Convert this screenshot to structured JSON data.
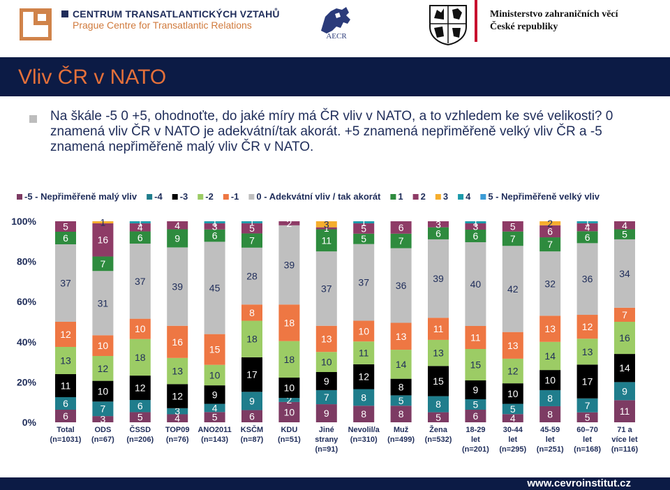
{
  "header": {
    "org_name": "CENTRUM TRANSATLANTICKÝCH VZTAHŮ",
    "org_name_en": "Prague Centre for Transatlantic Relations",
    "aecr_label": "AECR",
    "ministry_line1": "Ministerstvo zahraničních věcí",
    "ministry_line2": "České republiky"
  },
  "title": "Vliv ČR v NATO",
  "question": "Na škále -5 0 +5, ohodnoťte, do jaké míry má ČR vliv v NATO, a to vzhledem ke své velikosti? 0 znamená vliv ČR v NATO je adekvátní/tak akorát. +5 znamená nepřiměřeně velký vliv ČR a -5 znamená nepřiměřeně malý vliv ČR v NATO.",
  "footer_url": "www.cevroinstitut.cz",
  "chart_data": {
    "type": "bar",
    "stacked": true,
    "percent_stacked": true,
    "yticks": [
      "0%",
      "20%",
      "40%",
      "60%",
      "80%",
      "100%"
    ],
    "ylim": [
      0,
      100
    ],
    "legend_position": "top",
    "categories": [
      {
        "name": "Total",
        "n": "(n=1031)"
      },
      {
        "name": "ODS",
        "n": "(n=67)"
      },
      {
        "name": "ČSSD",
        "n": "(n=206)"
      },
      {
        "name": "TOP09",
        "n": "(n=76)"
      },
      {
        "name": "ANO2011",
        "n": "(n=143)"
      },
      {
        "name": "KSČM",
        "n": "(n=87)"
      },
      {
        "name": "KDU",
        "n": "(n=51)"
      },
      {
        "name": "Jiné strany",
        "n": "(n=91)"
      },
      {
        "name": "Nevolil/a",
        "n": "(n=310)"
      },
      {
        "name": "Muž",
        "n": "(n=499)"
      },
      {
        "name": "Žena",
        "n": "(n=532)"
      },
      {
        "name": "18-29 let",
        "n": "(n=201)"
      },
      {
        "name": "30-44 let",
        "n": "(n=295)"
      },
      {
        "name": "45-59 let",
        "n": "(n=251)"
      },
      {
        "name": "60–70 let",
        "n": "(n=168)"
      },
      {
        "name": "71 a více let",
        "n": "(n=116)"
      }
    ],
    "series": [
      {
        "name": "-5 - Nepřiměřeně malý vliv",
        "color": "#7d3b63",
        "values": [
          6,
          3,
          5,
          4,
          5,
          6,
          10,
          9,
          8,
          8,
          5,
          6,
          4,
          8,
          5,
          11
        ]
      },
      {
        "name": "-4",
        "color": "#1f7d8c",
        "values": [
          6,
          7,
          6,
          3,
          4,
          9,
          2,
          7,
          8,
          5,
          8,
          5,
          5,
          8,
          7,
          9
        ]
      },
      {
        "name": "-3",
        "color": "#000000",
        "values": [
          11,
          10,
          12,
          12,
          9,
          17,
          10,
          9,
          12,
          8,
          15,
          9,
          10,
          10,
          17,
          14
        ]
      },
      {
        "name": "-2",
        "color": "#9ccc65",
        "values": [
          13,
          12,
          18,
          13,
          10,
          18,
          18,
          10,
          11,
          14,
          13,
          15,
          12,
          14,
          13,
          16
        ]
      },
      {
        "name": "-1",
        "color": "#ee7743",
        "values": [
          12,
          10,
          10,
          16,
          15,
          8,
          18,
          13,
          10,
          13,
          11,
          11,
          13,
          13,
          12,
          7
        ]
      },
      {
        "name": "0 - Adekvátní vliv / tak akorát",
        "color": "#bfbfbf",
        "values": [
          37,
          31,
          37,
          39,
          45,
          28,
          39,
          37,
          37,
          36,
          39,
          40,
          42,
          32,
          36,
          34
        ]
      },
      {
        "name": "1",
        "color": "#2e8b3e",
        "values": [
          6,
          7,
          6,
          9,
          6,
          7,
          0,
          11,
          5,
          7,
          6,
          6,
          7,
          7,
          6,
          5
        ]
      },
      {
        "name": "2",
        "color": "#8e3b66",
        "values": [
          5,
          16,
          4,
          4,
          3,
          5,
          2,
          1,
          5,
          6,
          3,
          3,
          5,
          6,
          4,
          4
        ]
      },
      {
        "name": "3",
        "color": "#f6ae2d",
        "values": [
          0,
          1,
          0,
          0,
          0,
          0,
          0,
          3,
          0,
          0,
          0,
          0,
          0,
          2,
          0,
          0
        ]
      },
      {
        "name": "4",
        "color": "#1b9aaa",
        "values": [
          0,
          0,
          1,
          0,
          1,
          1,
          0,
          0,
          1,
          0,
          0,
          1,
          0,
          0,
          1,
          0
        ]
      },
      {
        "name": "5 - Nepřiměřeně velký vliv",
        "color": "#3b9bd6",
        "values": [
          0,
          0,
          0,
          0,
          0,
          0,
          0,
          0,
          0,
          0,
          0,
          0,
          0,
          0,
          0,
          0
        ]
      }
    ]
  }
}
